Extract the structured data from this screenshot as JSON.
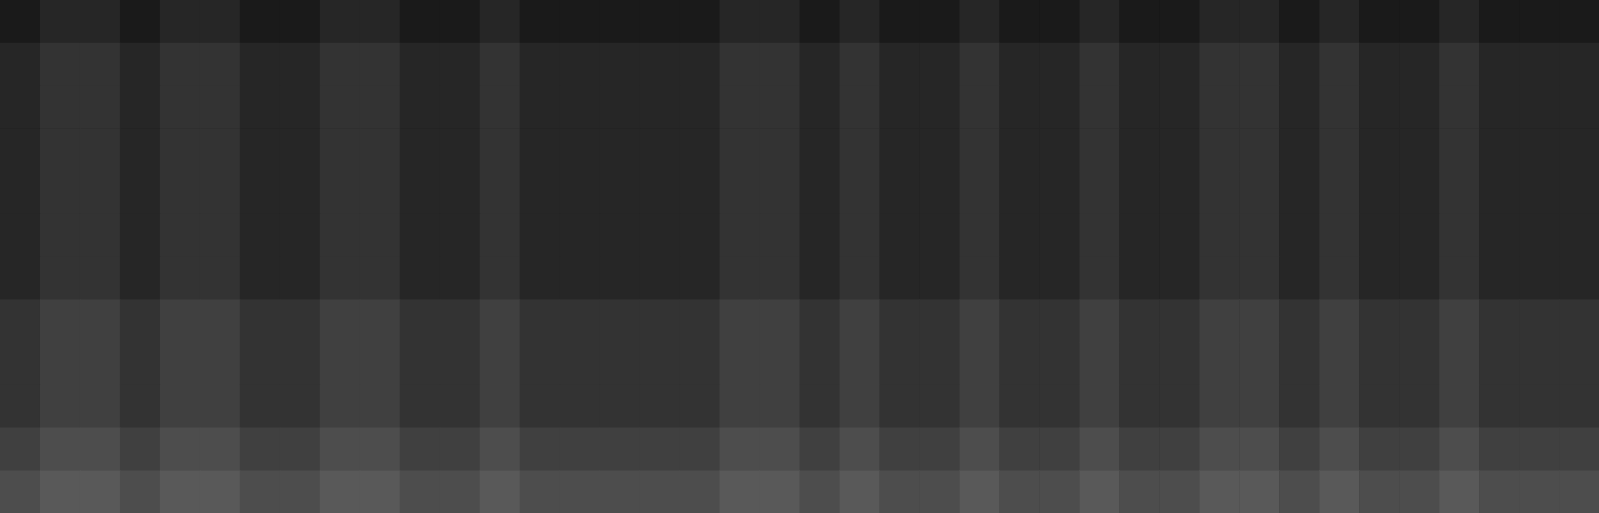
{
  "chart_data": {
    "type": "heatmap",
    "tick_labels": false,
    "zlim": [
      0,
      20
    ],
    "z": [
      [
        2,
        3,
        3,
        2,
        3,
        3,
        2,
        2,
        3,
        3,
        2,
        2,
        3,
        2,
        2,
        2,
        2,
        2,
        3,
        3,
        2,
        3,
        2,
        2,
        3,
        2,
        2,
        3,
        2,
        2,
        3,
        3,
        2,
        3,
        2,
        2,
        3,
        2,
        2,
        2
      ],
      [
        3,
        4,
        4,
        3,
        4,
        4,
        3,
        3,
        4,
        4,
        3,
        3,
        4,
        3,
        3,
        3,
        3,
        3,
        4,
        4,
        3,
        4,
        3,
        3,
        4,
        3,
        3,
        4,
        3,
        3,
        4,
        4,
        3,
        4,
        3,
        3,
        4,
        3,
        3,
        3
      ],
      [
        3,
        4,
        4,
        3,
        4,
        4,
        3,
        3,
        4,
        4,
        3,
        3,
        4,
        3,
        3,
        3,
        3,
        3,
        4,
        4,
        3,
        4,
        3,
        3,
        4,
        3,
        3,
        4,
        3,
        3,
        4,
        4,
        3,
        4,
        3,
        3,
        4,
        3,
        3,
        3
      ],
      [
        3,
        4,
        4,
        3,
        4,
        4,
        3,
        3,
        4,
        4,
        3,
        3,
        4,
        3,
        3,
        3,
        3,
        3,
        4,
        4,
        3,
        4,
        3,
        3,
        4,
        3,
        3,
        4,
        3,
        3,
        4,
        4,
        3,
        4,
        3,
        3,
        4,
        3,
        3,
        3
      ],
      [
        3,
        4,
        4,
        3,
        4,
        4,
        3,
        3,
        4,
        4,
        3,
        3,
        4,
        3,
        3,
        3,
        3,
        3,
        4,
        4,
        3,
        4,
        3,
        3,
        4,
        3,
        3,
        4,
        3,
        3,
        4,
        4,
        3,
        4,
        3,
        3,
        4,
        3,
        3,
        3
      ],
      [
        3,
        4,
        4,
        3,
        4,
        4,
        3,
        3,
        4,
        4,
        3,
        3,
        4,
        3,
        3,
        3,
        3,
        3,
        4,
        4,
        3,
        4,
        3,
        3,
        4,
        3,
        3,
        4,
        3,
        3,
        4,
        4,
        3,
        4,
        3,
        3,
        4,
        3,
        3,
        3
      ],
      [
        3,
        4,
        4,
        3,
        4,
        4,
        3,
        3,
        4,
        4,
        3,
        3,
        4,
        3,
        3,
        3,
        3,
        3,
        4,
        4,
        3,
        4,
        3,
        3,
        4,
        3,
        3,
        4,
        3,
        3,
        4,
        4,
        3,
        4,
        3,
        3,
        4,
        3,
        3,
        3
      ],
      [
        4,
        5,
        5,
        4,
        5,
        5,
        4,
        4,
        5,
        5,
        4,
        4,
        5,
        4,
        4,
        4,
        4,
        4,
        5,
        5,
        4,
        5,
        4,
        4,
        5,
        4,
        4,
        5,
        4,
        4,
        5,
        5,
        4,
        5,
        4,
        4,
        5,
        4,
        4,
        4
      ],
      [
        4,
        5,
        5,
        4,
        5,
        5,
        4,
        4,
        5,
        5,
        4,
        4,
        5,
        4,
        4,
        4,
        4,
        4,
        5,
        5,
        4,
        5,
        4,
        4,
        5,
        4,
        4,
        5,
        4,
        4,
        5,
        5,
        4,
        5,
        4,
        4,
        5,
        4,
        4,
        4
      ],
      [
        4,
        5,
        5,
        4,
        5,
        5,
        4,
        4,
        5,
        5,
        4,
        4,
        5,
        4,
        4,
        4,
        4,
        4,
        5,
        5,
        4,
        5,
        4,
        4,
        5,
        4,
        4,
        5,
        4,
        4,
        5,
        5,
        4,
        5,
        4,
        4,
        5,
        4,
        4,
        4
      ],
      [
        5,
        6,
        6,
        5,
        6,
        6,
        5,
        5,
        6,
        6,
        5,
        5,
        6,
        5,
        5,
        5,
        5,
        5,
        6,
        6,
        5,
        6,
        5,
        5,
        6,
        5,
        5,
        6,
        5,
        5,
        6,
        6,
        5,
        6,
        5,
        5,
        6,
        5,
        5,
        5
      ],
      [
        6,
        7,
        7,
        6,
        7,
        7,
        6,
        6,
        7,
        7,
        6,
        6,
        7,
        6,
        6,
        6,
        6,
        6,
        7,
        7,
        6,
        7,
        6,
        6,
        7,
        6,
        6,
        7,
        6,
        6,
        7,
        7,
        6,
        7,
        6,
        6,
        7,
        6,
        6,
        6
      ]
    ]
  }
}
